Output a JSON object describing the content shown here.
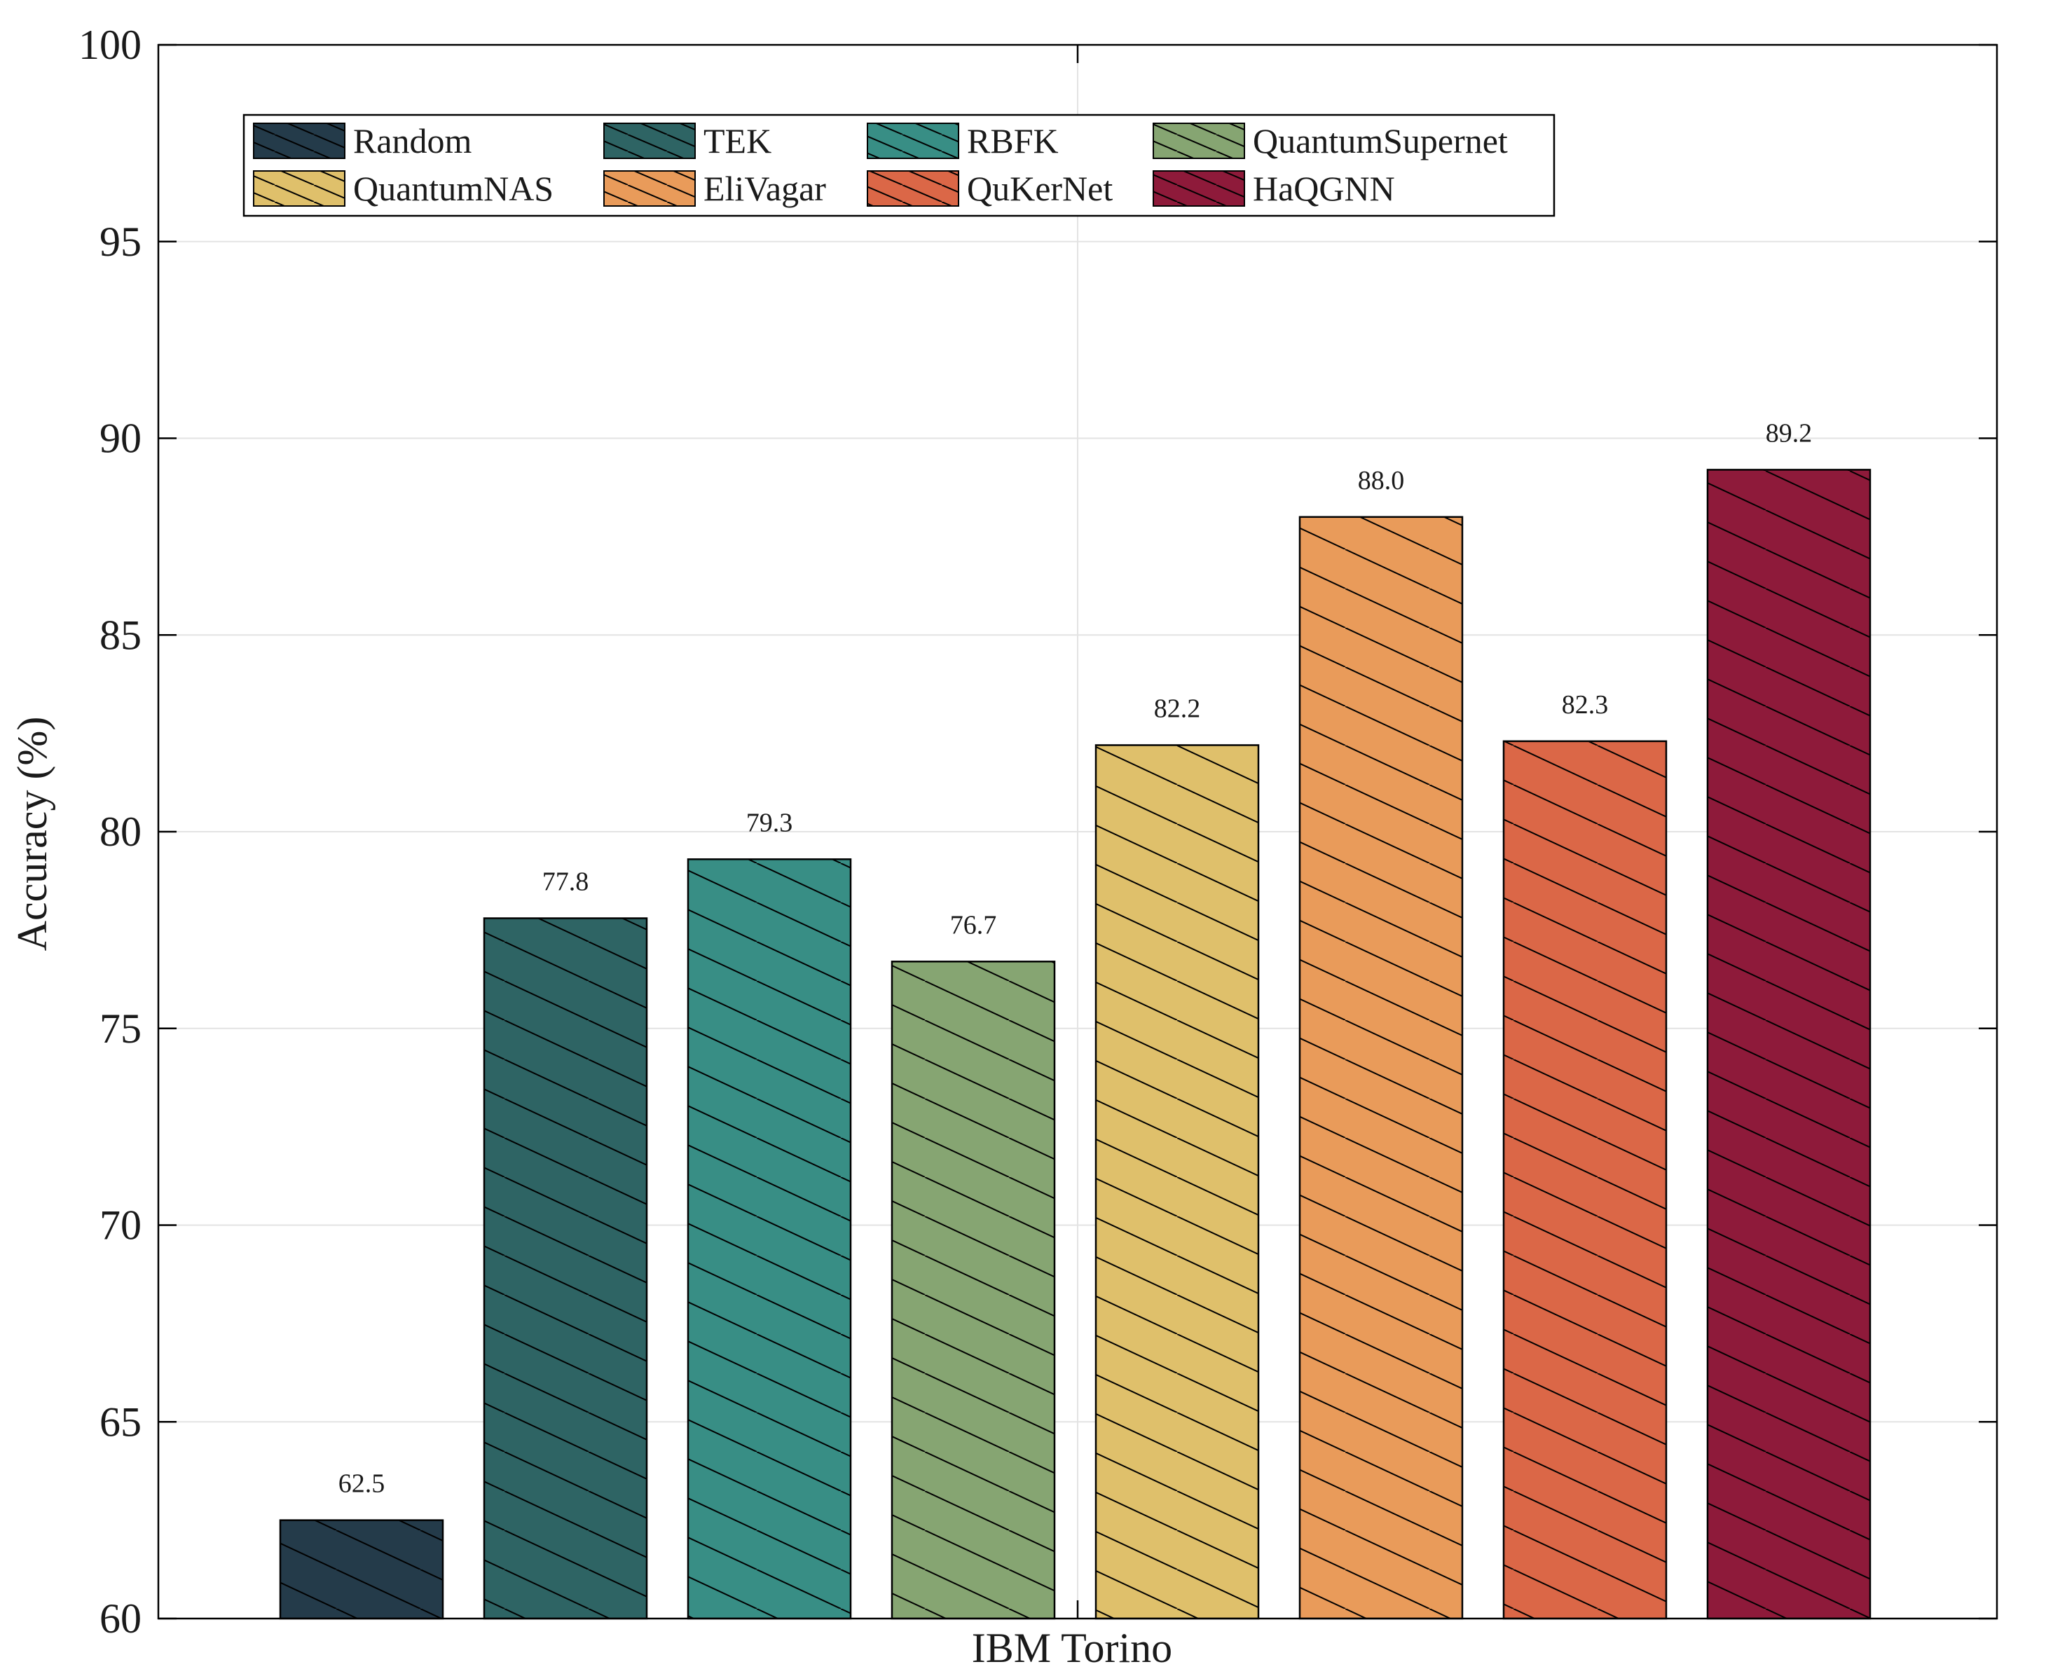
{
  "chart_data": {
    "type": "bar",
    "title": "",
    "xlabel": "IBM Torino",
    "ylabel": "Accuracy (%)",
    "ylim": [
      60,
      100
    ],
    "yticks": [
      "60",
      "65",
      "70",
      "75",
      "80",
      "85",
      "90",
      "95",
      "100"
    ],
    "grid": true,
    "legend_position": "top-left",
    "series": [
      {
        "name": "Random",
        "value": 62.5,
        "label": "62.5",
        "color": "#243b4a"
      },
      {
        "name": "TEK",
        "value": 77.8,
        "label": "77.8",
        "color": "#2e6464"
      },
      {
        "name": "RBFK",
        "value": 79.3,
        "label": "79.3",
        "color": "#388e85"
      },
      {
        "name": "QuantumSupernet",
        "value": 76.7,
        "label": "76.7",
        "color": "#86a572"
      },
      {
        "name": "QuantumNAS",
        "value": 82.2,
        "label": "82.2",
        "color": "#dfc06b"
      },
      {
        "name": "EliVagar",
        "value": 88.0,
        "label": "88.0",
        "color": "#e99b5a"
      },
      {
        "name": "QuKerNet",
        "value": 82.3,
        "label": "82.3",
        "color": "#db6747"
      },
      {
        "name": "HaQGNN",
        "value": 89.2,
        "label": "89.2",
        "color": "#8e1a3a"
      }
    ]
  }
}
